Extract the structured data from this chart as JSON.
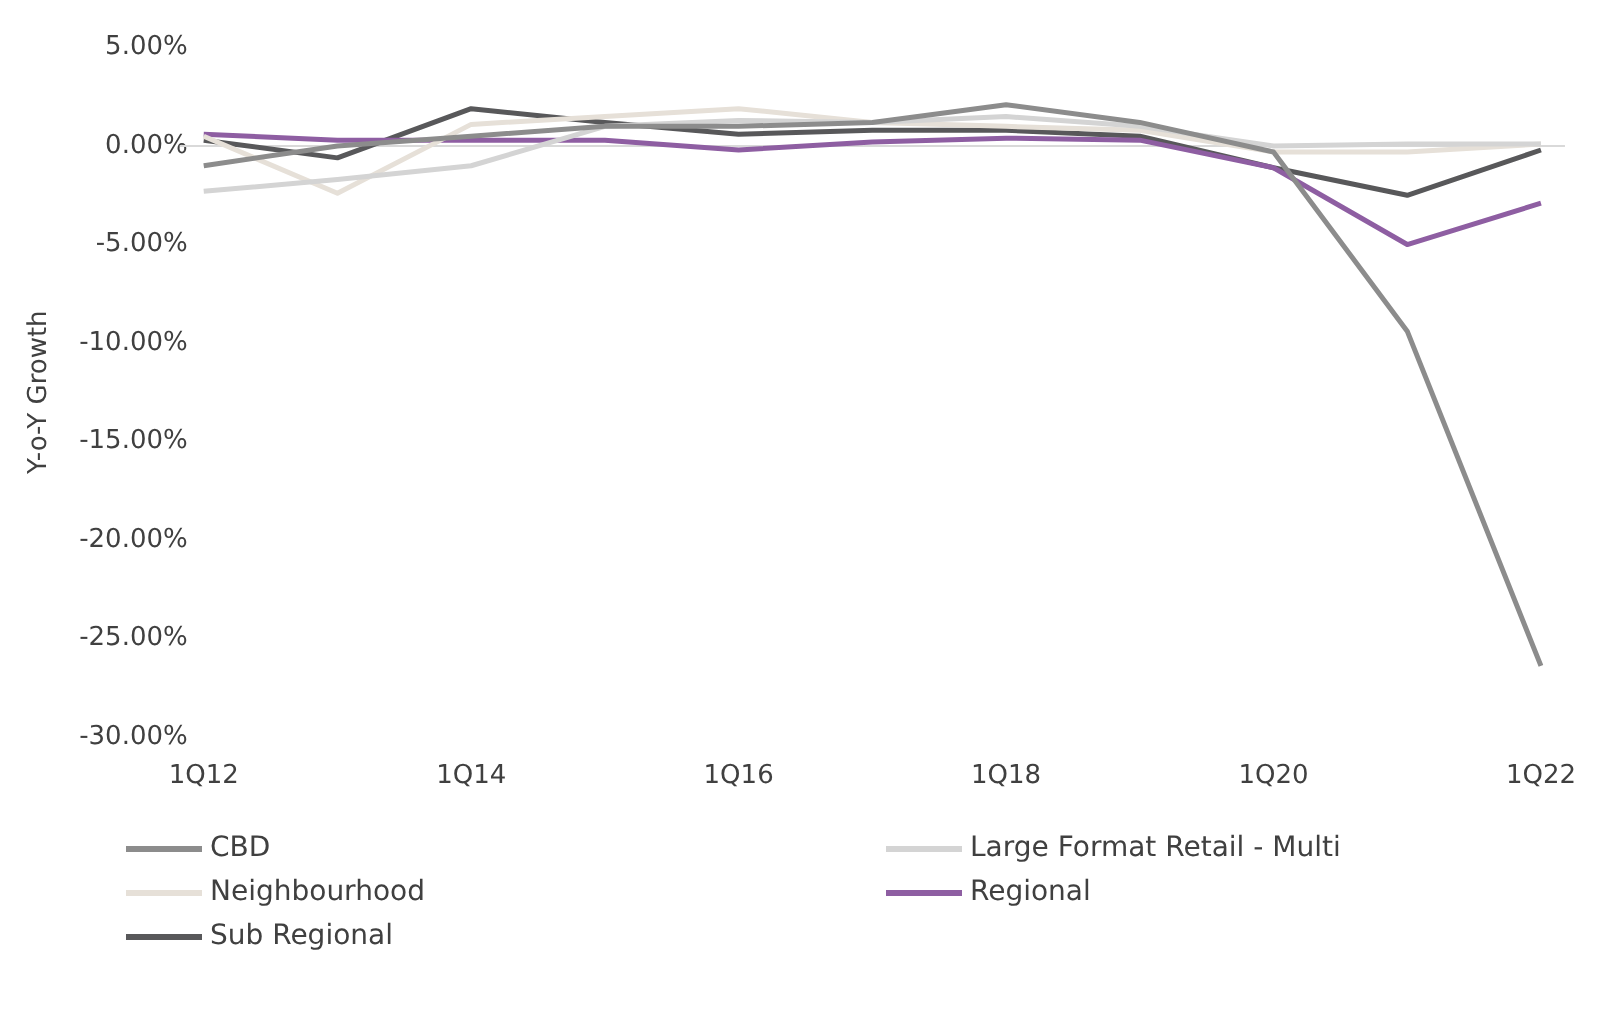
{
  "chart_data": {
    "type": "line",
    "ylabel": "Y-o-Y Growth",
    "categories": [
      "1Q12",
      null,
      "1Q14",
      null,
      "1Q16",
      null,
      "1Q18",
      null,
      "1Q20",
      null,
      "1Q22"
    ],
    "series": [
      {
        "name": "CBD",
        "color": "#8c8c8c",
        "values": [
          -1.0,
          0.0,
          0.5,
          1.0,
          1.0,
          1.2,
          2.1,
          1.2,
          -0.3,
          -9.4,
          -26.4
        ]
      },
      {
        "name": "Large Format Retail - Multi",
        "color": "#d4d4d4",
        "values": [
          -2.3,
          -1.7,
          -1.0,
          1.0,
          1.3,
          1.2,
          1.5,
          1.0,
          0.0,
          0.1,
          0.1
        ]
      },
      {
        "name": "Neighbourhood",
        "color": "#e6e0d8",
        "values": [
          0.5,
          -2.4,
          1.1,
          1.5,
          1.9,
          1.2,
          1.0,
          0.8,
          -0.3,
          -0.3,
          0.1
        ]
      },
      {
        "name": "Regional",
        "color": "#8e5ea2",
        "values": [
          0.6,
          0.3,
          0.3,
          0.3,
          -0.2,
          0.2,
          0.4,
          0.3,
          -1.1,
          -5.0,
          -2.9
        ]
      },
      {
        "name": "Sub Regional",
        "color": "#58585a",
        "values": [
          0.3,
          -0.6,
          1.9,
          1.2,
          0.6,
          0.8,
          0.8,
          0.5,
          -1.1,
          -2.5,
          -0.2
        ]
      }
    ],
    "ylim": [
      -30,
      5
    ],
    "yticks": [
      {
        "value": 5,
        "label": "5.00%"
      },
      {
        "value": 0,
        "label": "0.00%"
      },
      {
        "value": -5,
        "label": "-5.00%"
      },
      {
        "value": -10,
        "label": "-10.00%"
      },
      {
        "value": -15,
        "label": "-15.00%"
      },
      {
        "value": -20,
        "label": "-20.00%"
      },
      {
        "value": -25,
        "label": "-25.00%"
      },
      {
        "value": -30,
        "label": "-30.00%"
      }
    ],
    "ref_lines": [
      {
        "axis": "y",
        "value": 0,
        "color": "#d9d9d9"
      }
    ],
    "grid": false,
    "legend": "bottom",
    "marker": "none",
    "line_style": "solid"
  }
}
